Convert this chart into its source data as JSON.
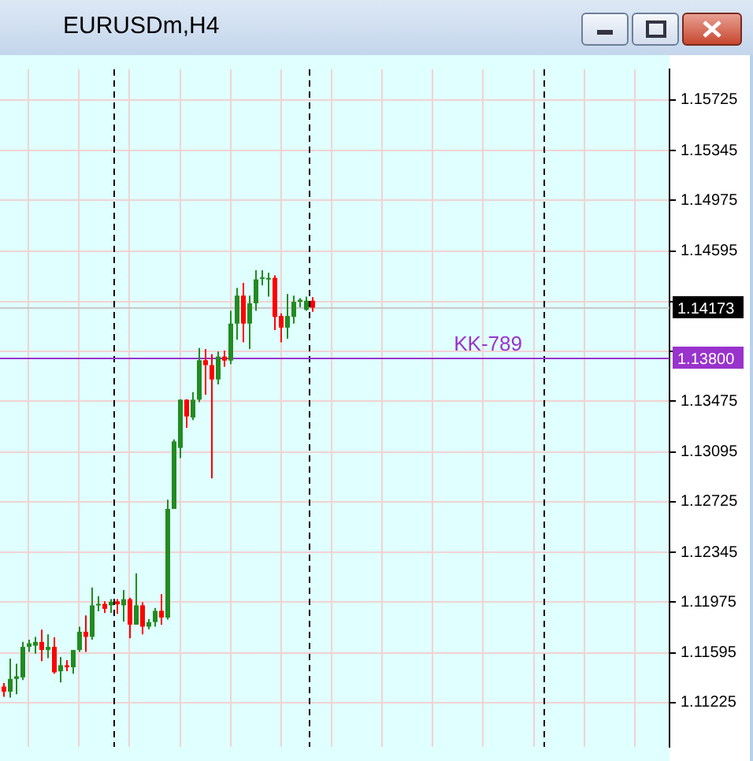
{
  "chart_data": {
    "type": "candlestick",
    "title": "EURUSDm,H4",
    "categories": [
      null,
      null,
      null,
      null,
      null,
      null,
      null,
      null,
      null,
      null,
      null,
      null,
      null,
      null,
      null,
      null,
      null,
      null,
      null,
      null,
      null,
      null,
      null,
      null,
      null,
      null,
      null,
      null,
      null,
      null,
      null,
      null,
      null,
      null,
      null,
      null,
      null,
      null,
      null,
      null,
      null,
      null,
      null,
      null,
      null,
      null,
      null,
      null,
      null,
      null,
      null,
      null,
      null,
      null,
      null,
      null,
      null,
      null,
      null,
      null,
      null,
      null,
      null,
      null,
      null,
      null,
      null,
      null,
      null,
      null,
      null,
      null,
      null,
      null,
      null,
      null,
      null,
      null,
      null,
      null,
      null,
      null,
      null,
      null,
      null,
      null,
      null,
      null,
      null,
      null,
      null,
      null,
      null,
      null,
      null,
      null,
      null,
      null,
      null,
      null,
      null,
      null,
      null,
      null,
      null,
      null
    ],
    "ohlc": [
      [
        1.11345,
        1.11372,
        1.11269,
        1.11307
      ],
      [
        1.11307,
        1.11553,
        1.11262,
        1.11402
      ],
      [
        1.11402,
        1.11515,
        1.11288,
        1.11421
      ],
      [
        1.11413,
        1.11678,
        1.11394,
        1.11641
      ],
      [
        1.11641,
        1.11694,
        1.11603,
        1.11667
      ],
      [
        1.1165,
        1.11716,
        1.11591,
        1.11678
      ],
      [
        1.11678,
        1.11769,
        1.11534,
        1.11618
      ],
      [
        1.11618,
        1.11735,
        1.11557,
        1.11641
      ],
      [
        1.11641,
        1.11713,
        1.1144,
        1.11451
      ],
      [
        1.11459,
        1.11565,
        1.11375,
        1.11504
      ],
      [
        1.11504,
        1.11542,
        1.11459,
        1.11489
      ],
      [
        1.11489,
        1.11618,
        1.1144,
        1.11618
      ],
      [
        1.11618,
        1.11792,
        1.11603,
        1.11754
      ],
      [
        1.11754,
        1.11875,
        1.11603,
        1.11716
      ],
      [
        1.11716,
        1.12084,
        1.11694,
        1.11951
      ],
      [
        1.11951,
        1.1202,
        1.11906,
        1.11962
      ],
      [
        1.11962,
        1.11981,
        1.11894,
        1.11925
      ],
      [
        1.11951,
        1.11997,
        1.11894,
        1.11978
      ],
      [
        1.11981,
        1.11997,
        1.11887,
        1.11959
      ],
      [
        1.11951,
        1.12065,
        1.1183,
        1.11997
      ],
      [
        1.11997,
        1.12008,
        1.11705,
        1.11807
      ],
      [
        1.11807,
        1.1219,
        1.11807,
        1.11951
      ],
      [
        1.11951,
        1.11974,
        1.11735,
        1.11792
      ],
      [
        1.11792,
        1.11849,
        1.11773,
        1.11826
      ],
      [
        1.11826,
        1.11932,
        1.11792,
        1.1191
      ],
      [
        1.1191,
        1.12035,
        1.11807,
        1.1186
      ],
      [
        1.1186,
        1.1274,
        1.11845,
        1.12671
      ],
      [
        1.12671,
        1.1319,
        1.12671,
        1.13175
      ],
      [
        1.13126,
        1.1349,
        1.1305,
        1.13486
      ],
      [
        1.13486,
        1.1349,
        1.13277,
        1.13361
      ],
      [
        1.13353,
        1.13543,
        1.13334,
        1.13486
      ],
      [
        1.13486,
        1.13872,
        1.13467,
        1.13781
      ],
      [
        1.13781,
        1.13865,
        1.13524,
        1.13744
      ],
      [
        1.13744,
        1.13827,
        1.12899,
        1.13637
      ],
      [
        1.13637,
        1.13846,
        1.136,
        1.13808
      ],
      [
        1.13808,
        1.13853,
        1.13732,
        1.13778
      ],
      [
        1.13778,
        1.14149,
        1.13751,
        1.14054
      ],
      [
        1.14054,
        1.1432,
        1.13933,
        1.14263
      ],
      [
        1.14263,
        1.14358,
        1.13914,
        1.14054
      ],
      [
        1.14054,
        1.14263,
        1.13865,
        1.14206
      ],
      [
        1.14206,
        1.14452,
        1.14149,
        1.14384
      ],
      [
        1.14392,
        1.14452,
        1.14339,
        1.14399
      ],
      [
        1.14388,
        1.14433,
        1.14255,
        1.14395
      ],
      [
        1.14395,
        1.14414,
        1.14005,
        1.14104
      ],
      [
        1.14111,
        1.1413,
        1.13914,
        1.14024
      ],
      [
        1.14024,
        1.14274,
        1.13941,
        1.14111
      ],
      [
        1.14104,
        1.14263,
        1.14054,
        1.14217
      ],
      [
        1.14217,
        1.14244,
        1.14176,
        1.14232
      ],
      [
        1.14157,
        1.14255,
        1.14149,
        1.14225
      ],
      [
        1.14225,
        1.14251,
        1.14142,
        1.14173
      ],
      null,
      null,
      null,
      null,
      null,
      null,
      null,
      null,
      null,
      null,
      null,
      null,
      null,
      null,
      null,
      null,
      null,
      null,
      null,
      null,
      null,
      null,
      null,
      null,
      null,
      null,
      null,
      null,
      null,
      null,
      null,
      null,
      null,
      null,
      null,
      null,
      null,
      null,
      null,
      null,
      null,
      null,
      null,
      null,
      null,
      null,
      null,
      null,
      null,
      null,
      null,
      null,
      null,
      null,
      null,
      null
    ],
    "colors": [
      "#ff0000",
      "#228b22",
      "#228b22",
      "#228b22",
      "#228b22",
      "#228b22",
      "#ff0000",
      "#228b22",
      "#ff0000",
      "#228b22",
      "#ff0000",
      "#228b22",
      "#228b22",
      "#ff0000",
      "#228b22",
      "#228b22",
      "#ff0000",
      "#228b22",
      "#ff0000",
      "#228b22",
      "#ff0000",
      "#228b22",
      "#ff0000",
      "#228b22",
      "#228b22",
      "#ff0000",
      "#228b22",
      "#228b22",
      "#228b22",
      "#ff0000",
      "#228b22",
      "#228b22",
      "#ff0000",
      "#ff0000",
      "#228b22",
      "#ff0000",
      "#228b22",
      "#228b22",
      "#ff0000",
      "#228b22",
      "#228b22",
      "#228b22",
      "#228b22",
      "#ff0000",
      "#ff0000",
      "#228b22",
      "#228b22",
      "#228b22",
      "#228b22",
      "#ff0000",
      null,
      null,
      null,
      null,
      null,
      null,
      null,
      null,
      null,
      null,
      null,
      null,
      null,
      null,
      null,
      null,
      null,
      null,
      null,
      null,
      null,
      null,
      null,
      null,
      null,
      null,
      null,
      null,
      null,
      null,
      null,
      null,
      null,
      null,
      null,
      null,
      null,
      null,
      null,
      null,
      null,
      null,
      null,
      null,
      null,
      null,
      null,
      null,
      null,
      null,
      null,
      null,
      null,
      null,
      null,
      null
    ],
    "ylim": [
      1.10895,
      1.15952
    ],
    "yticks": [
      1.11225,
      1.11595,
      1.11975,
      1.12345,
      1.12725,
      1.13095,
      1.13475,
      {
        "value": 1.13845,
        "label": null
      },
      {
        "value": 1.14215,
        "label": null
      },
      1.14595,
      1.14975,
      1.15345,
      1.15725
    ],
    "tick_labels": "y",
    "grid": true,
    "annotations": [
      "1.14173",
      "1.13800"
    ],
    "ref_lines": [
      {
        "axis": "y",
        "value": 1.14173,
        "color": "#c8c8c8"
      },
      {
        "axis": "y",
        "value": 1.138,
        "label": "KK-789",
        "color": "#9933cc"
      }
    ]
  }
}
